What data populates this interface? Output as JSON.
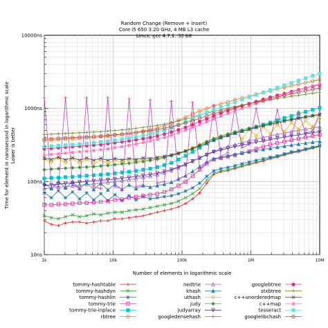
{
  "chart_data": {
    "type": "line",
    "title_lines": [
      "Random Change (Remove + Insert)",
      "Core i5 650 3.20 GHz, 4 MB L3 cache",
      "Linux, gcc 4.7.1, 32 bit"
    ],
    "xlabel": "Number of elements in logarithmic scale",
    "ylabel_lines": [
      "Time for element in nanosecond in logarithmic scale",
      "Lower is better"
    ],
    "x_scale": "log",
    "y_scale": "log",
    "xlim": [
      1000,
      10000000
    ],
    "ylim": [
      10,
      10000
    ],
    "x_ticks": [
      {
        "value": 1000,
        "label": "1k"
      },
      {
        "value": 10000,
        "label": "10k"
      },
      {
        "value": 100000,
        "label": "100k"
      },
      {
        "value": 1000000,
        "label": "1M"
      },
      {
        "value": 10000000,
        "label": "10M"
      }
    ],
    "y_ticks": [
      {
        "value": 10,
        "label": "10ns"
      },
      {
        "value": 100,
        "label": "100ns"
      },
      {
        "value": 1000,
        "label": "1000ns"
      },
      {
        "value": 10000,
        "label": "10000ns"
      }
    ],
    "grid": true,
    "legend_position": "bottom",
    "series": [
      {
        "name": "tommy-hashtable",
        "color": "#e41a1c",
        "marker": "plus",
        "values": [
          29,
          26,
          25,
          27,
          28,
          28,
          27,
          28,
          29,
          29,
          31,
          31,
          32,
          33,
          34,
          36,
          38,
          40,
          42,
          45,
          50,
          58,
          70,
          95,
          125,
          135,
          140,
          150,
          160,
          170,
          180,
          190,
          205,
          215,
          230,
          245,
          255,
          270,
          285,
          300
        ]
      },
      {
        "name": "tommy-hashdyn",
        "color": "#2ca02c",
        "marker": "x",
        "values": [
          34,
          32,
          31,
          33,
          35,
          33,
          34,
          36,
          35,
          37,
          38,
          38,
          40,
          41,
          42,
          44,
          46,
          48,
          50,
          54,
          60,
          68,
          80,
          105,
          130,
          140,
          145,
          155,
          165,
          175,
          185,
          195,
          210,
          220,
          235,
          250,
          260,
          275,
          290,
          305
        ]
      },
      {
        "name": "tommy-hashlin",
        "color": "#1f77b4",
        "marker": "star",
        "values": [
          70,
          60,
          75,
          60,
          72,
          58,
          70,
          56,
          68,
          55,
          66,
          55,
          64,
          56,
          62,
          58,
          60,
          62,
          64,
          68,
          74,
          82,
          95,
          118,
          140,
          150,
          156,
          165,
          175,
          185,
          195,
          205,
          215,
          225,
          240,
          255,
          265,
          280,
          295,
          310
        ]
      },
      {
        "name": "tommy-trie",
        "color": "#e0209b",
        "marker": "box",
        "values": [
          48,
          48,
          49,
          49,
          50,
          51,
          51,
          52,
          53,
          54,
          56,
          57,
          60,
          62,
          64,
          66,
          68,
          72,
          78,
          88,
          100,
          120,
          145,
          175,
          200,
          210,
          220,
          230,
          245,
          260,
          280,
          300,
          320,
          335,
          350,
          370,
          385,
          400,
          420,
          440
        ]
      },
      {
        "name": "tommy-trie-inplace",
        "color": "#00c8d0",
        "marker": "fbox",
        "values": [
          110,
          112,
          113,
          115,
          116,
          118,
          120,
          122,
          124,
          126,
          130,
          133,
          136,
          140,
          145,
          150,
          158,
          168,
          180,
          200,
          225,
          255,
          290,
          330,
          370,
          400,
          430,
          460,
          490,
          520,
          560,
          600,
          640,
          690,
          740,
          790,
          840,
          900,
          960,
          1020
        ]
      },
      {
        "name": "rbtree",
        "color": "#e87722",
        "marker": "circle",
        "values": [
          360,
          370,
          375,
          380,
          385,
          390,
          395,
          400,
          410,
          420,
          430,
          440,
          455,
          470,
          490,
          510,
          540,
          580,
          630,
          690,
          760,
          840,
          920,
          1000,
          1080,
          1150,
          1230,
          1310,
          1390,
          1470,
          1560,
          1650,
          1740,
          1840,
          1940,
          2040,
          2140,
          2250,
          2360,
          2470
        ]
      },
      {
        "name": "nedtrie",
        "color": "#9467bd",
        "marker": "tri",
        "values": [
          80,
          82,
          84,
          85,
          87,
          89,
          91,
          93,
          95,
          97,
          100,
          103,
          106,
          110,
          114,
          118,
          124,
          132,
          142,
          155,
          170,
          190,
          210,
          235,
          260,
          280,
          300,
          320,
          340,
          360,
          380,
          400,
          420,
          440,
          460,
          480,
          500,
          520,
          540,
          560
        ]
      },
      {
        "name": "khash",
        "color": "#2c7fb8",
        "marker": "ftri",
        "values": [
          95,
          80,
          100,
          82,
          98,
          80,
          96,
          78,
          94,
          77,
          92,
          78,
          90,
          80,
          88,
          84,
          88,
          92,
          98,
          108,
          120,
          138,
          160,
          185,
          205,
          215,
          225,
          235,
          245,
          255,
          265,
          275,
          285,
          295,
          305,
          315,
          325,
          335,
          345,
          355
        ]
      },
      {
        "name": "uthash",
        "color": "#f2b705",
        "marker": "diamond",
        "values": [
          200,
          185,
          210,
          180,
          205,
          178,
          200,
          176,
          198,
          176,
          196,
          180,
          196,
          186,
          200,
          195,
          205,
          215,
          228,
          245,
          265,
          290,
          320,
          355,
          390,
          420,
          450,
          480,
          380,
          520,
          420,
          560,
          450,
          600,
          480,
          640,
          520,
          680,
          560,
          720
        ]
      },
      {
        "name": "judy",
        "color": "#3a9a3a",
        "marker": "fdiamond",
        "values": [
          145,
          148,
          150,
          152,
          154,
          156,
          158,
          160,
          163,
          166,
          170,
          174,
          178,
          183,
          188,
          194,
          202,
          212,
          225,
          240,
          260,
          285,
          315,
          350,
          385,
          415,
          445,
          475,
          505,
          535,
          565,
          595,
          625,
          655,
          685,
          715,
          745,
          775,
          805,
          835
        ]
      },
      {
        "name": "judyarray",
        "color": "#4b2a8f",
        "marker": "ptri",
        "values": [
          88,
          90,
          92,
          94,
          96,
          98,
          100,
          102,
          104,
          106,
          108,
          111,
          114,
          117,
          121,
          125,
          130,
          137,
          146,
          158,
          172,
          190,
          210,
          232,
          255,
          270,
          285,
          300,
          315,
          330,
          345,
          360,
          375,
          390,
          405,
          420,
          435,
          450,
          465,
          480
        ]
      },
      {
        "name": "googledensehash",
        "color": "#c040c0",
        "marker": "plus",
        "values": [
          1400,
          90,
          85,
          1400,
          90,
          80,
          1400,
          85,
          80,
          1400,
          85,
          80,
          1350,
          85,
          90,
          1300,
          95,
          100,
          1250,
          110,
          120,
          1200,
          150,
          180,
          1100,
          220,
          250,
          1050,
          290,
          320,
          1000,
          350,
          380,
          950,
          400,
          430,
          900,
          460,
          490,
          870
        ]
      },
      {
        "name": "googlebtree",
        "color": "#e7298a",
        "marker": "fcircle",
        "values": [
          280,
          285,
          290,
          295,
          300,
          305,
          310,
          315,
          320,
          330,
          340,
          350,
          360,
          372,
          385,
          400,
          420,
          445,
          475,
          510,
          550,
          600,
          660,
          720,
          790,
          860,
          930,
          1000,
          1080,
          1160,
          1240,
          1330,
          1420,
          1510,
          1600,
          1700,
          1800,
          1900,
          2000,
          2100
        ]
      },
      {
        "name": "stxbtree",
        "color": "#6b8e23",
        "marker": "plus",
        "values": [
          440,
          445,
          450,
          455,
          460,
          465,
          470,
          475,
          480,
          490,
          500,
          510,
          520,
          535,
          550,
          565,
          585,
          610,
          640,
          675,
          715,
          760,
          810,
          860,
          910,
          960,
          1010,
          1060,
          1110,
          1160,
          1210,
          1260,
          1310,
          1360,
          1410,
          1460,
          1510,
          1560,
          1610,
          1660
        ]
      },
      {
        "name": "c++unorderedmap",
        "color": "#404040",
        "marker": "x",
        "values": [
          210,
          200,
          215,
          198,
          212,
          196,
          210,
          195,
          208,
          195,
          206,
          197,
          206,
          200,
          210,
          206,
          214,
          222,
          232,
          245,
          260,
          280,
          305,
          335,
          365,
          395,
          425,
          455,
          485,
          515,
          545,
          575,
          605,
          635,
          665,
          695,
          725,
          755,
          785,
          815
        ]
      },
      {
        "name": "c++map",
        "color": "#ff69b4",
        "marker": "star",
        "values": [
          230,
          235,
          240,
          245,
          250,
          255,
          260,
          265,
          272,
          280,
          290,
          300,
          312,
          325,
          340,
          357,
          377,
          400,
          430,
          465,
          505,
          550,
          600,
          655,
          715,
          780,
          850,
          925,
          1000,
          1080,
          1160,
          1250,
          1340,
          1440,
          1550,
          1660,
          1780,
          1900,
          2030,
          2160
        ]
      },
      {
        "name": "tesseract",
        "color": "#66e0d8",
        "marker": "fbox",
        "values": [
          300,
          305,
          310,
          315,
          320,
          326,
          332,
          340,
          348,
          356,
          366,
          378,
          392,
          408,
          425,
          445,
          470,
          500,
          540,
          590,
          650,
          720,
          800,
          880,
          960,
          1040,
          1130,
          1220,
          1320,
          1420,
          1530,
          1650,
          1780,
          1920,
          2070,
          2230,
          2400,
          2590,
          2790,
          3000
        ]
      },
      {
        "name": "googlelibchash",
        "color": "#b5483c",
        "marker": "circle",
        "values": [
          380,
          385,
          390,
          395,
          400,
          405,
          410,
          415,
          420,
          428,
          436,
          445,
          455,
          467,
          480,
          495,
          512,
          535,
          562,
          595,
          635,
          680,
          730,
          785,
          845,
          905,
          965,
          1025,
          1090,
          1155,
          1220,
          1290,
          1360,
          1430,
          1505,
          1580,
          1660,
          1740,
          1820,
          1900
        ]
      }
    ]
  }
}
